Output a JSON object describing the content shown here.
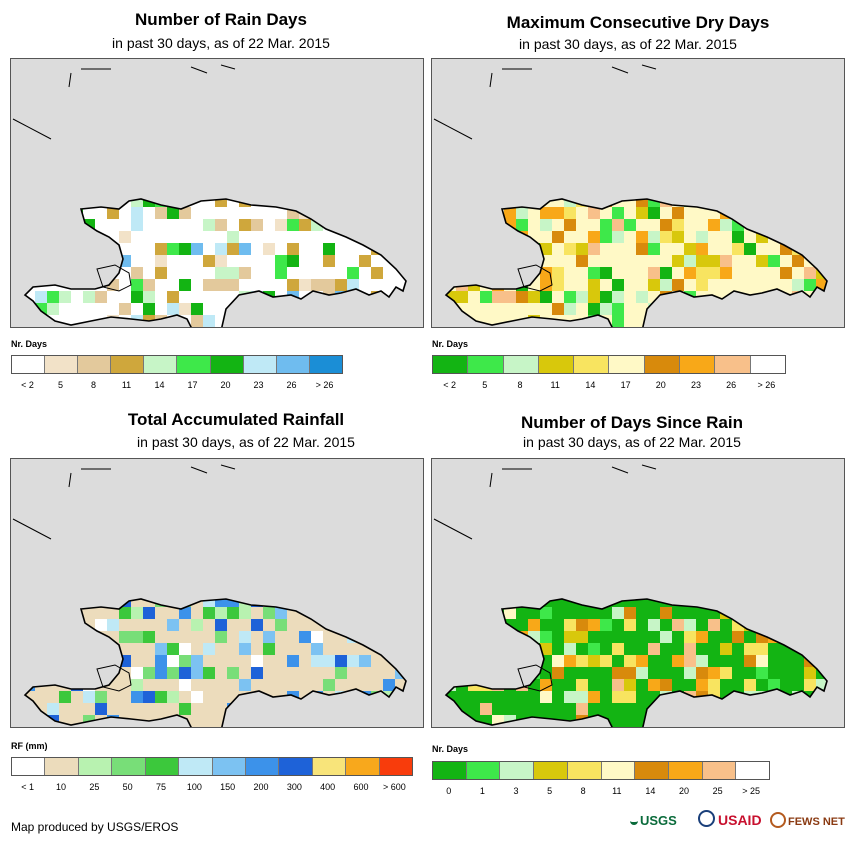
{
  "panels": [
    {
      "id": "rain-days",
      "title": "Number of Rain Days",
      "subtitle": "in past 30 days, as of 22 Mar. 2015",
      "legend_title": "Nr. Days",
      "legend_colors": [
        "#ffffff",
        "#f2e2c8",
        "#e3c99c",
        "#cfa73c",
        "#c7f5c7",
        "#3ee84a",
        "#13b413",
        "#bfe9f6",
        "#6fbcef",
        "#1b8ed6"
      ],
      "legend_labels": [
        "< 2",
        "5",
        "8",
        "11",
        "14",
        "17",
        "20",
        "23",
        "26",
        "> 26"
      ],
      "fill_color": "#ffffff"
    },
    {
      "id": "dry-days",
      "title": "Maximum Consecutive Dry Days",
      "subtitle": "in past 30 days, as of 22 Mar. 2015",
      "legend_title": "Nr. Days",
      "legend_colors": [
        "#13b413",
        "#3ee84a",
        "#c7f5c7",
        "#d8c80c",
        "#f8e460",
        "#fff9c6",
        "#d88a0c",
        "#f8a818",
        "#f8c08a",
        "#ffffff"
      ],
      "legend_labels": [
        "< 2",
        "5",
        "8",
        "11",
        "14",
        "17",
        "20",
        "23",
        "26",
        "> 26"
      ],
      "fill_color": "#fff9c6"
    },
    {
      "id": "rainfall",
      "title": "Total Accumulated Rainfall",
      "subtitle": "in past 30 days, as of 22 Mar. 2015",
      "legend_title": "RF (mm)",
      "legend_colors": [
        "#ffffff",
        "#ecdcbc",
        "#b8f2b0",
        "#78de78",
        "#3cc83c",
        "#bfe9f6",
        "#7cc2f2",
        "#3c92ea",
        "#1e62d8",
        "#f8e47a",
        "#f8a81c",
        "#f83c0c"
      ],
      "legend_labels": [
        "< 1",
        "10",
        "25",
        "50",
        "75",
        "100",
        "150",
        "200",
        "300",
        "400",
        "600",
        "> 600"
      ],
      "fill_color": "#ecdcbc"
    },
    {
      "id": "days-since-rain",
      "title": "Number of Days Since Rain",
      "subtitle": "in past 30 days, as of 22 Mar. 2015",
      "legend_title": "Nr. Days",
      "legend_colors": [
        "#13b413",
        "#3ee84a",
        "#c7f5c7",
        "#d8c80c",
        "#f8e460",
        "#fff9c6",
        "#d88a0c",
        "#f8a818",
        "#f8c08a",
        "#ffffff"
      ],
      "legend_labels": [
        "0",
        "1",
        "3",
        "5",
        "8",
        "11",
        "14",
        "20",
        "25",
        "> 25"
      ],
      "fill_color": "#13b413"
    }
  ],
  "credit": "Map produced by USGS/EROS",
  "logos": {
    "usgs": "USGS",
    "usaid": "USAID",
    "fewsnet": "FEWS NET"
  }
}
